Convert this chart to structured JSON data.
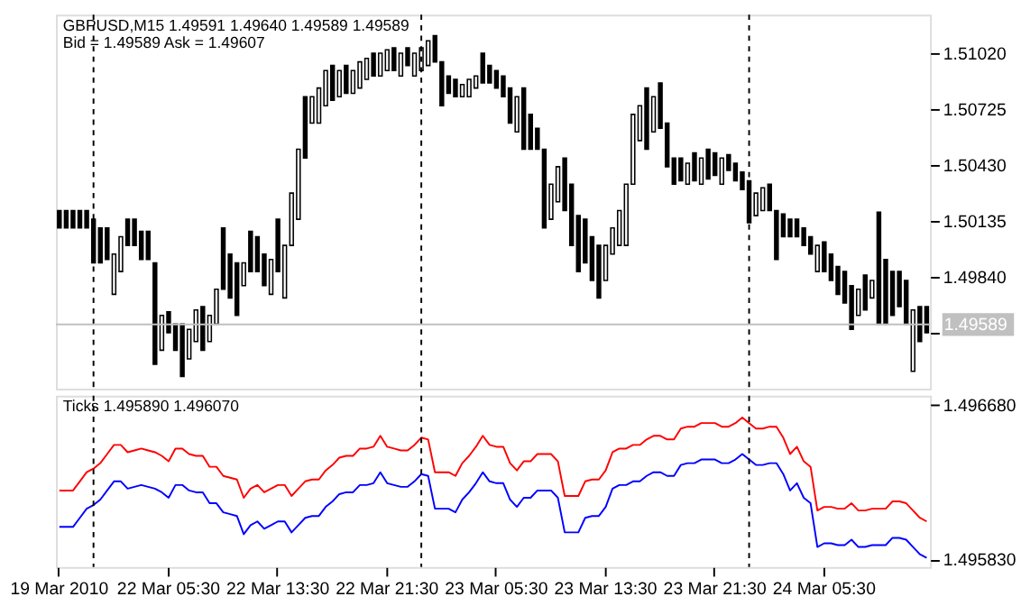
{
  "chart_data": [
    {
      "type": "candlestick",
      "annotations": [
        "GBPUSD,M15  1.49591 1.49640 1.49589 1.49589",
        "Bid = 1.49589    Ask = 1.49607"
      ],
      "ohlc": [
        [
          1.5019,
          1.5019,
          1.50098,
          1.50098
        ],
        [
          1.5019,
          1.5019,
          1.50098,
          1.50098
        ],
        [
          1.5019,
          1.5019,
          1.50098,
          1.50098
        ],
        [
          1.5019,
          1.5019,
          1.50098,
          1.50098
        ],
        [
          1.5019,
          1.5019,
          1.50098,
          1.50098
        ],
        [
          1.50144,
          1.50144,
          1.49914,
          1.49914
        ],
        [
          1.50098,
          1.50098,
          1.49914,
          1.49914
        ],
        [
          1.50098,
          1.50098,
          1.49932,
          1.49932
        ],
        [
          1.49748,
          1.4996,
          1.49748,
          1.4996
        ],
        [
          1.49868,
          1.50052,
          1.49868,
          1.50052
        ],
        [
          1.50144,
          1.50144,
          1.50006,
          1.50006
        ],
        [
          1.50144,
          1.50144,
          1.50006,
          1.50006
        ],
        [
          1.5008,
          1.5008,
          1.49932,
          1.49932
        ],
        [
          1.5008,
          1.5008,
          1.49932,
          1.49932
        ],
        [
          1.49914,
          1.49914,
          1.49379,
          1.49379
        ],
        [
          1.49453,
          1.49637,
          1.49453,
          1.49637
        ],
        [
          1.49656,
          1.49656,
          1.49545,
          1.49545
        ],
        [
          1.49591,
          1.49591,
          1.49453,
          1.49453
        ],
        [
          1.49591,
          1.49591,
          1.49315,
          1.49315
        ],
        [
          1.49407,
          1.49563,
          1.49407,
          1.49563
        ],
        [
          1.49499,
          1.49665,
          1.49499,
          1.49665
        ],
        [
          1.49683,
          1.49683,
          1.49453,
          1.49453
        ],
        [
          1.49499,
          1.49637,
          1.49499,
          1.49637
        ],
        [
          1.49591,
          1.49775,
          1.49591,
          1.49775
        ],
        [
          1.50098,
          1.50098,
          1.49775,
          1.49775
        ],
        [
          1.4996,
          1.4996,
          1.49729,
          1.49729
        ],
        [
          1.49914,
          1.49914,
          1.49637,
          1.49637
        ],
        [
          1.49794,
          1.49914,
          1.49794,
          1.49914
        ],
        [
          1.5008,
          1.5008,
          1.49868,
          1.49868
        ],
        [
          1.50052,
          1.50052,
          1.49868,
          1.49868
        ],
        [
          1.4996,
          1.4996,
          1.49794,
          1.49794
        ],
        [
          1.49748,
          1.49932,
          1.49748,
          1.49932
        ],
        [
          1.50144,
          1.50144,
          1.49868,
          1.49868
        ],
        [
          1.49729,
          1.50006,
          1.49729,
          1.50006
        ],
        [
          1.50006,
          1.50282,
          1.50006,
          1.50282
        ],
        [
          1.50144,
          1.50513,
          1.50144,
          1.50513
        ],
        [
          1.5079,
          1.5079,
          1.50467,
          1.50467
        ],
        [
          1.50651,
          1.5079,
          1.50651,
          1.5079
        ],
        [
          1.50651,
          1.50836,
          1.50651,
          1.50836
        ],
        [
          1.50743,
          1.50928,
          1.50743,
          1.50928
        ],
        [
          1.50955,
          1.50955,
          1.50771,
          1.50771
        ],
        [
          1.5079,
          1.50928,
          1.5079,
          1.50928
        ],
        [
          1.50955,
          1.50955,
          1.50808,
          1.50808
        ],
        [
          1.50808,
          1.50928,
          1.50808,
          1.50928
        ],
        [
          1.50836,
          1.50974,
          1.50836,
          1.50974
        ],
        [
          1.50882,
          1.50992,
          1.50882,
          1.50992
        ],
        [
          1.5102,
          1.5102,
          1.509,
          1.509
        ],
        [
          1.509,
          1.5102,
          1.509,
          1.5102
        ],
        [
          1.50928,
          1.51038,
          1.50928,
          1.51038
        ],
        [
          1.51048,
          1.51048,
          1.50928,
          1.50928
        ],
        [
          1.509,
          1.5102,
          1.509,
          1.5102
        ],
        [
          1.51048,
          1.51048,
          1.50955,
          1.50955
        ],
        [
          1.509,
          1.5102,
          1.509,
          1.5102
        ],
        [
          1.50928,
          1.51048,
          1.50928,
          1.51048
        ],
        [
          1.50955,
          1.51085,
          1.50955,
          1.51085
        ],
        [
          1.51112,
          1.51112,
          1.50974,
          1.50974
        ],
        [
          1.50974,
          1.50974,
          1.50743,
          1.50743
        ],
        [
          1.509,
          1.509,
          1.50808,
          1.50808
        ],
        [
          1.50882,
          1.50882,
          1.5079,
          1.5079
        ],
        [
          1.5079,
          1.50854,
          1.5079,
          1.50854
        ],
        [
          1.5079,
          1.50882,
          1.5079,
          1.50882
        ],
        [
          1.50836,
          1.509,
          1.50836,
          1.509
        ],
        [
          1.5102,
          1.5102,
          1.50863,
          1.50863
        ],
        [
          1.50955,
          1.50955,
          1.50863,
          1.50863
        ],
        [
          1.50928,
          1.50928,
          1.50836,
          1.50836
        ],
        [
          1.509,
          1.509,
          1.5079,
          1.5079
        ],
        [
          1.50836,
          1.50836,
          1.50651,
          1.50651
        ],
        [
          1.50605,
          1.5079,
          1.50605,
          1.5079
        ],
        [
          1.50836,
          1.50836,
          1.50513,
          1.50513
        ],
        [
          1.50697,
          1.50697,
          1.50513,
          1.50513
        ],
        [
          1.50624,
          1.50624,
          1.50513,
          1.50513
        ],
        [
          1.50513,
          1.50513,
          1.50098,
          1.50098
        ],
        [
          1.50144,
          1.50329,
          1.50144,
          1.50329
        ],
        [
          1.50236,
          1.50421,
          1.50236,
          1.50421
        ],
        [
          1.50467,
          1.50467,
          1.5019,
          1.5019
        ],
        [
          1.50329,
          1.50329,
          1.50006,
          1.50006
        ],
        [
          1.50163,
          1.50163,
          1.49868,
          1.49868
        ],
        [
          1.50144,
          1.50144,
          1.49914,
          1.49914
        ],
        [
          1.50052,
          1.50052,
          1.49821,
          1.49821
        ],
        [
          1.50006,
          1.50006,
          1.49729,
          1.49729
        ],
        [
          1.49821,
          1.50006,
          1.49821,
          1.50006
        ],
        [
          1.4996,
          1.50098,
          1.4996,
          1.50098
        ],
        [
          1.50006,
          1.5019,
          1.50006,
          1.5019
        ],
        [
          1.50006,
          1.50329,
          1.50006,
          1.50329
        ],
        [
          1.50329,
          1.50697,
          1.50329,
          1.50697
        ],
        [
          1.50559,
          1.50743,
          1.50559,
          1.50743
        ],
        [
          1.50836,
          1.50836,
          1.50513,
          1.50513
        ],
        [
          1.50605,
          1.5079,
          1.50605,
          1.5079
        ],
        [
          1.50863,
          1.50863,
          1.50624,
          1.50624
        ],
        [
          1.50651,
          1.50651,
          1.50421,
          1.50421
        ],
        [
          1.50467,
          1.50467,
          1.50329,
          1.50329
        ],
        [
          1.50467,
          1.50467,
          1.50347,
          1.50347
        ],
        [
          1.50329,
          1.50439,
          1.50329,
          1.50439
        ],
        [
          1.50494,
          1.50494,
          1.50347,
          1.50347
        ],
        [
          1.50329,
          1.50467,
          1.50329,
          1.50467
        ],
        [
          1.50513,
          1.50513,
          1.50356,
          1.50356
        ],
        [
          1.50494,
          1.50494,
          1.50375,
          1.50375
        ],
        [
          1.50329,
          1.50467,
          1.50329,
          1.50467
        ],
        [
          1.50485,
          1.50485,
          1.50402,
          1.50402
        ],
        [
          1.50439,
          1.50439,
          1.50347,
          1.50347
        ],
        [
          1.50393,
          1.50393,
          1.50301,
          1.50301
        ],
        [
          1.50347,
          1.50347,
          1.50126,
          1.50126
        ],
        [
          1.50163,
          1.50282,
          1.50163,
          1.50282
        ],
        [
          1.5019,
          1.5031,
          1.5019,
          1.5031
        ],
        [
          1.50329,
          1.50329,
          1.5019,
          1.5019
        ],
        [
          1.5019,
          1.5019,
          1.49932,
          1.49932
        ],
        [
          1.50172,
          1.50172,
          1.50052,
          1.50052
        ],
        [
          1.50144,
          1.50144,
          1.50052,
          1.50052
        ],
        [
          1.50144,
          1.50144,
          1.50052,
          1.50052
        ],
        [
          1.50098,
          1.50098,
          1.50006,
          1.50006
        ],
        [
          1.50052,
          1.50052,
          1.4996,
          1.4996
        ],
        [
          1.49868,
          1.50006,
          1.49868,
          1.50006
        ],
        [
          1.50024,
          1.50024,
          1.49868,
          1.49868
        ],
        [
          1.4996,
          1.4996,
          1.49821,
          1.49821
        ],
        [
          1.49895,
          1.49895,
          1.49748,
          1.49748
        ],
        [
          1.49868,
          1.49868,
          1.49702,
          1.49702
        ],
        [
          1.49794,
          1.49794,
          1.49563,
          1.49563
        ],
        [
          1.49637,
          1.49775,
          1.49637,
          1.49775
        ],
        [
          1.49849,
          1.49849,
          1.49665,
          1.49665
        ],
        [
          1.49729,
          1.49821,
          1.49729,
          1.49821
        ],
        [
          1.50181,
          1.50181,
          1.49591,
          1.49591
        ],
        [
          1.49932,
          1.49932,
          1.49591,
          1.49591
        ],
        [
          1.49868,
          1.49868,
          1.49637,
          1.49637
        ],
        [
          1.49868,
          1.49868,
          1.49683,
          1.49683
        ],
        [
          1.49821,
          1.49821,
          1.49591,
          1.49591
        ],
        [
          1.49342,
          1.49665,
          1.49342,
          1.49665
        ],
        [
          1.49683,
          1.49683,
          1.49499,
          1.49499
        ],
        [
          1.49683,
          1.49683,
          1.49545,
          1.49545
        ]
      ],
      "color": "#000000",
      "ylim": [
        1.4925,
        1.51223
      ],
      "yticks": [
        {
          "value": 1.5102,
          "label": "1.51020"
        },
        1.50725,
        {
          "value": 1.5043,
          "label": "1.50430"
        },
        1.50135,
        {
          "value": 1.4984,
          "label": "1.49840"
        },
        {
          "value": 1.49545,
          "label": null
        }
      ],
      "ref_lines": [
        {
          "axis": "y",
          "value": 1.49589,
          "label": "1.49589",
          "color": "#c0c0c0",
          "line_style": "solid"
        }
      ],
      "tick_labels": "y",
      "grid": false,
      "legend": false
    },
    {
      "type": "line",
      "annotations": [
        "Ticks 1.495890 1.496070"
      ],
      "categories": [
        "19 Mar 2010",
        null,
        null,
        null,
        null,
        null,
        null,
        null,
        null,
        null,
        null,
        null,
        null,
        null,
        null,
        null,
        "22 Mar 05:30",
        null,
        null,
        null,
        null,
        null,
        null,
        null,
        null,
        null,
        null,
        null,
        null,
        null,
        null,
        null,
        "22 Mar 13:30",
        null,
        null,
        null,
        null,
        null,
        null,
        null,
        null,
        null,
        null,
        null,
        null,
        null,
        null,
        null,
        "22 Mar 21:30",
        null,
        null,
        null,
        null,
        null,
        null,
        null,
        null,
        null,
        null,
        null,
        null,
        null,
        null,
        null,
        "23 Mar 05:30",
        null,
        null,
        null,
        null,
        null,
        null,
        null,
        null,
        null,
        null,
        null,
        null,
        null,
        null,
        null,
        "23 Mar 13:30",
        null,
        null,
        null,
        null,
        null,
        null,
        null,
        null,
        null,
        null,
        null,
        null,
        null,
        null,
        null,
        "23 Mar 21:30",
        null,
        null,
        null,
        null,
        null,
        null,
        null,
        null,
        null,
        null,
        null,
        null,
        null,
        null,
        null,
        "24 Mar 05:30",
        null,
        null,
        null,
        null,
        null,
        null,
        null,
        null,
        null,
        null,
        null,
        null,
        null,
        null,
        null
      ],
      "series": [
        {
          "color": "#ff0000",
          "values": [
            1.49621,
            1.49621,
            1.49621,
            1.49626,
            1.49631,
            1.49633,
            1.49636,
            1.49641,
            1.49646,
            1.49646,
            1.49642,
            1.49643,
            1.49644,
            1.49643,
            1.49642,
            1.4964,
            1.49637,
            1.49644,
            1.49644,
            1.49641,
            1.4964,
            1.4964,
            1.49634,
            1.49634,
            1.49629,
            1.49628,
            1.49627,
            1.49617,
            1.49622,
            1.49624,
            1.4962,
            1.49622,
            1.49624,
            1.49624,
            1.49618,
            1.49622,
            1.49626,
            1.49627,
            1.49627,
            1.49632,
            1.49635,
            1.49639,
            1.4964,
            1.4964,
            1.49644,
            1.49644,
            1.49645,
            1.49651,
            1.49645,
            1.49644,
            1.49643,
            1.49643,
            1.49646,
            1.4965,
            1.49649,
            1.49631,
            1.49631,
            1.49631,
            1.49629,
            1.49636,
            1.4964,
            1.49645,
            1.49651,
            1.49646,
            1.49645,
            1.49645,
            1.49636,
            1.49632,
            1.49637,
            1.49637,
            1.49641,
            1.49641,
            1.49641,
            1.49637,
            1.49618,
            1.49618,
            1.49618,
            1.49626,
            1.49627,
            1.49627,
            1.49632,
            1.49642,
            1.49644,
            1.49644,
            1.49646,
            1.49646,
            1.49649,
            1.49651,
            1.49651,
            1.49649,
            1.49649,
            1.49655,
            1.49656,
            1.49656,
            1.49658,
            1.49658,
            1.49658,
            1.49656,
            1.49656,
            1.49658,
            1.49661,
            1.49658,
            1.49655,
            1.49655,
            1.49656,
            1.49656,
            1.4965,
            1.49641,
            1.49645,
            1.49637,
            1.49634,
            1.4961,
            1.49612,
            1.49612,
            1.49611,
            1.49611,
            1.49614,
            1.4961,
            1.4961,
            1.49611,
            1.49611,
            1.49611,
            1.49615,
            1.49615,
            1.49614,
            1.4961,
            1.49606,
            1.49604
          ]
        },
        {
          "color": "#0000ff",
          "values": [
            1.49601,
            1.49601,
            1.49601,
            1.49606,
            1.49611,
            1.49613,
            1.49616,
            1.49621,
            1.49626,
            1.49626,
            1.49622,
            1.49623,
            1.49624,
            1.49623,
            1.49622,
            1.4962,
            1.49617,
            1.49624,
            1.49624,
            1.49621,
            1.4962,
            1.4962,
            1.49614,
            1.49614,
            1.49609,
            1.49608,
            1.49607,
            1.49597,
            1.49602,
            1.49604,
            1.496,
            1.49602,
            1.49604,
            1.49604,
            1.49598,
            1.49602,
            1.49606,
            1.49607,
            1.49607,
            1.49612,
            1.49615,
            1.49619,
            1.4962,
            1.4962,
            1.49624,
            1.49624,
            1.49625,
            1.49631,
            1.49625,
            1.49624,
            1.49623,
            1.49623,
            1.49626,
            1.4963,
            1.49629,
            1.49611,
            1.49611,
            1.49611,
            1.49609,
            1.49616,
            1.4962,
            1.49625,
            1.49631,
            1.49626,
            1.49625,
            1.49625,
            1.49616,
            1.49612,
            1.49617,
            1.49617,
            1.49621,
            1.49621,
            1.49621,
            1.49617,
            1.49598,
            1.49598,
            1.49598,
            1.49606,
            1.49607,
            1.49607,
            1.49612,
            1.49622,
            1.49624,
            1.49624,
            1.49626,
            1.49626,
            1.49629,
            1.49631,
            1.49631,
            1.49629,
            1.49629,
            1.49635,
            1.49636,
            1.49636,
            1.49638,
            1.49638,
            1.49638,
            1.49636,
            1.49636,
            1.49638,
            1.49641,
            1.49638,
            1.49635,
            1.49635,
            1.49636,
            1.49636,
            1.4963,
            1.49621,
            1.49625,
            1.49617,
            1.49614,
            1.4959,
            1.49592,
            1.49592,
            1.49591,
            1.49591,
            1.49594,
            1.4959,
            1.4959,
            1.49591,
            1.49591,
            1.49591,
            1.49595,
            1.49595,
            1.49594,
            1.4959,
            1.49586,
            1.49584
          ]
        }
      ],
      "ylim": [
        1.49579,
        1.49673
      ],
      "yticks": [
        {
          "value": 1.49668,
          "label": "1.496680"
        },
        {
          "value": 1.49583,
          "label": "1.495830"
        }
      ],
      "line_style": "solid",
      "marker": "none",
      "grid": false,
      "legend": false
    }
  ]
}
